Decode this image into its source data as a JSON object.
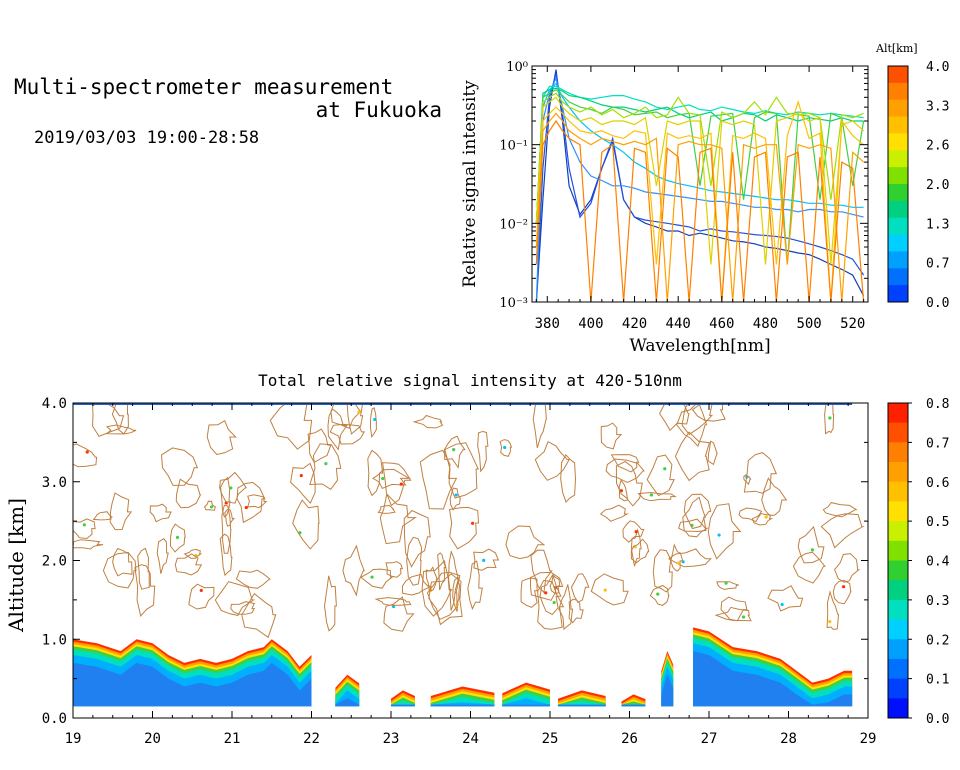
{
  "header": {
    "title_line1": "Multi-spectrometer measurement",
    "title_line2": "at Fukuoka",
    "datetime": "2019/03/03 19:00-28:58"
  },
  "chart_data": [
    {
      "type": "line",
      "xlabel": "Wavelength[nm]",
      "ylabel": "Relative signal intensity",
      "xlim": [
        373,
        527
      ],
      "ylim": [
        0.001,
        1
      ],
      "yscale": "log",
      "x_ticks": [
        380,
        400,
        420,
        440,
        460,
        480,
        500,
        520
      ],
      "y_tick_labels": [
        "10⁰",
        "10⁻¹",
        "10⁻²",
        "10⁻³"
      ],
      "colorbar": {
        "title": "Alt[km]",
        "tick_labels": [
          "4.0",
          "3.3",
          "2.6",
          "2.0",
          "1.3",
          "0.7",
          "0.0"
        ],
        "colors": [
          "#ff5000",
          "#ff8000",
          "#ffa000",
          "#ffc000",
          "#ffe000",
          "#c8f000",
          "#80e000",
          "#30d030",
          "#00d080",
          "#00e0c0",
          "#00d0ff",
          "#00a0ff",
          "#0070ff",
          "#0040ff"
        ]
      },
      "x": [
        375,
        378,
        381,
        384,
        387,
        390,
        395,
        400,
        405,
        410,
        415,
        420,
        425,
        430,
        435,
        440,
        445,
        450,
        455,
        460,
        465,
        470,
        475,
        480,
        485,
        490,
        495,
        500,
        505,
        510,
        515,
        520,
        525
      ],
      "series": [
        {
          "color": "#1040c0",
          "values": [
            0.001,
            0.02,
            0.3,
            0.9,
            0.2,
            0.03,
            0.013,
            0.02,
            0.05,
            0.11,
            0.02,
            0.012,
            0.01,
            0.009,
            0.008,
            0.008,
            0.007,
            0.0075,
            0.007,
            0.0065,
            0.006,
            0.0058,
            0.0055,
            0.005,
            0.0048,
            0.0045,
            0.0042,
            0.004,
            0.0035,
            0.003,
            0.0026,
            0.0022,
            0.0012
          ]
        },
        {
          "color": "#2050e0",
          "values": [
            0.001,
            0.05,
            0.4,
            0.8,
            0.25,
            0.05,
            0.012,
            0.018,
            0.05,
            0.12,
            0.02,
            0.012,
            0.011,
            0.0105,
            0.01,
            0.0095,
            0.009,
            0.008,
            0.0085,
            0.008,
            0.0078,
            0.0075,
            0.0072,
            0.007,
            0.0068,
            0.0065,
            0.006,
            0.0055,
            0.005,
            0.0045,
            0.004,
            0.0035,
            0.0022
          ]
        },
        {
          "color": "#3090ff",
          "values": [
            0.001,
            0.2,
            0.45,
            0.7,
            0.3,
            0.12,
            0.06,
            0.04,
            0.035,
            0.03,
            0.03,
            0.028,
            0.025,
            0.024,
            0.023,
            0.022,
            0.021,
            0.02,
            0.019,
            0.019,
            0.018,
            0.017,
            0.016,
            0.016,
            0.015,
            0.015,
            0.014,
            0.015,
            0.015,
            0.014,
            0.014,
            0.013,
            0.012
          ]
        },
        {
          "color": "#00c0ff",
          "values": [
            0.003,
            0.3,
            0.5,
            0.6,
            0.4,
            0.3,
            0.2,
            0.15,
            0.12,
            0.1,
            0.08,
            0.06,
            0.05,
            0.04,
            0.035,
            0.032,
            0.03,
            0.028,
            0.026,
            0.025,
            0.024,
            0.023,
            0.022,
            0.021,
            0.02,
            0.02,
            0.019,
            0.018,
            0.018,
            0.017,
            0.017,
            0.016,
            0.016
          ]
        },
        {
          "color": "#00e0c0",
          "values": [
            0.01,
            0.4,
            0.55,
            0.55,
            0.5,
            0.45,
            0.4,
            0.38,
            0.4,
            0.42,
            0.42,
            0.38,
            0.35,
            0.3,
            0.28,
            0.3,
            0.32,
            0.28,
            0.27,
            0.3,
            0.28,
            0.26,
            0.25,
            0.27,
            0.25,
            0.24,
            0.26,
            0.25,
            0.24,
            0.25,
            0.24,
            0.23,
            0.22
          ]
        },
        {
          "color": "#00d080",
          "values": [
            0.01,
            0.45,
            0.5,
            0.52,
            0.48,
            0.42,
            0.4,
            0.36,
            0.32,
            0.3,
            0.3,
            0.28,
            0.26,
            0.28,
            0.3,
            0.25,
            0.22,
            0.24,
            0.26,
            0.2,
            0.22,
            0.25,
            0.24,
            0.2,
            0.24,
            0.22,
            0.2,
            0.22,
            0.21,
            0.2,
            0.22,
            0.2,
            0.2
          ]
        },
        {
          "color": "#40d040",
          "values": [
            0.01,
            0.4,
            0.45,
            0.5,
            0.42,
            0.35,
            0.3,
            0.28,
            0.25,
            0.3,
            0.28,
            0.24,
            0.25,
            0.26,
            0.22,
            0.24,
            0.25,
            0.03,
            0.23,
            0.24,
            0.25,
            0.02,
            0.22,
            0.26,
            0.25,
            0.003,
            0.24,
            0.23,
            0.02,
            0.25,
            0.22,
            0.03,
            0.2
          ]
        },
        {
          "color": "#a0e000",
          "values": [
            0.01,
            0.35,
            0.4,
            0.45,
            0.35,
            0.3,
            0.26,
            0.3,
            0.24,
            0.28,
            0.22,
            0.25,
            0.3,
            0.22,
            0.24,
            0.4,
            0.25,
            0.24,
            0.03,
            0.26,
            0.22,
            0.25,
            0.35,
            0.24,
            0.4,
            0.25,
            0.24,
            0.25,
            0.22,
            0.02,
            0.24,
            0.22,
            0.25
          ]
        },
        {
          "color": "#e0d000",
          "values": [
            0.01,
            0.3,
            0.35,
            0.4,
            0.3,
            0.25,
            0.2,
            0.22,
            0.18,
            0.2,
            0.2,
            0.18,
            0.22,
            0.03,
            0.2,
            0.18,
            0.2,
            0.2,
            0.003,
            0.2,
            0.18,
            0.2,
            0.18,
            0.003,
            0.2,
            0.22,
            0.25,
            0.2,
            0.22,
            0.003,
            0.18,
            0.2,
            0.15
          ]
        },
        {
          "color": "#ffc000",
          "values": [
            0.005,
            0.2,
            0.25,
            0.3,
            0.25,
            0.2,
            0.15,
            0.14,
            0.15,
            0.13,
            0.12,
            0.15,
            0.14,
            0.003,
            0.14,
            0.12,
            0.13,
            0.12,
            0.14,
            0.001,
            0.13,
            0.12,
            0.14,
            0.12,
            0.003,
            0.13,
            0.35,
            0.12,
            0.14,
            0.001,
            0.2,
            0.13,
            0.1
          ]
        },
        {
          "color": "#ffa000",
          "values": [
            0.005,
            0.15,
            0.2,
            0.25,
            0.2,
            0.15,
            0.12,
            0.1,
            0.12,
            0.11,
            0.1,
            0.11,
            0.1,
            0.12,
            0.001,
            0.1,
            0.11,
            0.1,
            0.1,
            0.09,
            0.001,
            0.1,
            0.09,
            0.1,
            0.1,
            0.003,
            0.1,
            0.09,
            0.1,
            0.09,
            0.001,
            0.08,
            0.06
          ]
        },
        {
          "color": "#ff8000",
          "values": [
            0.003,
            0.1,
            0.15,
            0.2,
            0.15,
            0.12,
            0.1,
            0.001,
            0.08,
            0.1,
            0.001,
            0.09,
            0.08,
            0.001,
            0.09,
            0.07,
            0.001,
            0.08,
            0.09,
            0.001,
            0.08,
            0.001,
            0.07,
            0.08,
            0.001,
            0.07,
            0.08,
            0.001,
            0.07,
            0.001,
            0.06,
            0.05,
            0.001
          ]
        }
      ]
    },
    {
      "type": "heatmap",
      "title": "Total relative signal intensity at 420-510nm",
      "ylabel": "Altitude [km]",
      "xlim": [
        19,
        29
      ],
      "ylim": [
        0,
        4
      ],
      "x_ticks": [
        "19",
        "20",
        "21",
        "22",
        "23",
        "24",
        "25",
        "26",
        "27",
        "28",
        "29"
      ],
      "y_ticks": [
        "0.0",
        "1.0",
        "2.0",
        "3.0",
        "4.0"
      ],
      "colorbar": {
        "tick_labels": [
          "0.8",
          "0.7",
          "0.6",
          "0.5",
          "0.4",
          "0.3",
          "0.2",
          "0.1",
          "0.0"
        ],
        "colors": [
          "#ff2000",
          "#ff5000",
          "#ff8000",
          "#ffa000",
          "#ffc000",
          "#ffe000",
          "#c8f000",
          "#80e000",
          "#30d030",
          "#00d080",
          "#00e0c0",
          "#00d0ff",
          "#00a0ff",
          "#0070ff",
          "#0040ff",
          "#0010ff"
        ]
      },
      "layer_top": [
        [
          19.0,
          1.0
        ],
        [
          19.3,
          0.95
        ],
        [
          19.6,
          0.85
        ],
        [
          19.8,
          1.0
        ],
        [
          20.0,
          0.95
        ],
        [
          20.2,
          0.8
        ],
        [
          20.4,
          0.7
        ],
        [
          20.6,
          0.75
        ],
        [
          20.8,
          0.7
        ],
        [
          21.0,
          0.75
        ],
        [
          21.2,
          0.85
        ],
        [
          21.4,
          0.9
        ],
        [
          21.5,
          1.0
        ],
        [
          21.7,
          0.85
        ],
        [
          21.85,
          0.65
        ],
        [
          22.0,
          0.8
        ]
      ],
      "layer_top_2": [
        [
          26.8,
          1.15
        ],
        [
          27.0,
          1.1
        ],
        [
          27.3,
          0.9
        ],
        [
          27.6,
          0.85
        ],
        [
          27.9,
          0.75
        ],
        [
          28.1,
          0.6
        ],
        [
          28.3,
          0.45
        ],
        [
          28.5,
          0.5
        ],
        [
          28.7,
          0.6
        ],
        [
          28.8,
          0.6
        ]
      ]
    }
  ]
}
